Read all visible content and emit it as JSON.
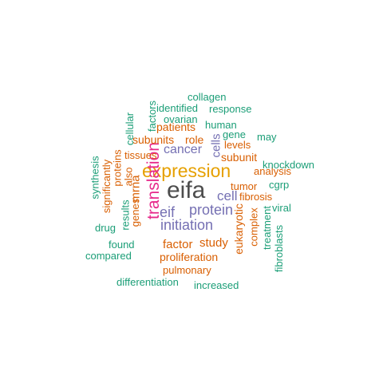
{
  "palette": {
    "gray": "#4d4d4d",
    "pink": "#e7298a",
    "gold": "#e6a000",
    "purple": "#7570b3",
    "orange": "#d95f02",
    "green": "#1b9e77"
  },
  "words": [
    {
      "text": "eifa",
      "color": "gray",
      "orientation": "horizontal"
    },
    {
      "text": "expression",
      "color": "gold",
      "orientation": "horizontal"
    },
    {
      "text": "translation",
      "color": "pink",
      "orientation": "vertical"
    },
    {
      "text": "protein",
      "color": "purple",
      "orientation": "horizontal"
    },
    {
      "text": "initiation",
      "color": "purple",
      "orientation": "horizontal"
    },
    {
      "text": "cell",
      "color": "purple",
      "orientation": "horizontal"
    },
    {
      "text": "eif",
      "color": "purple",
      "orientation": "horizontal"
    },
    {
      "text": "cancer",
      "color": "purple",
      "orientation": "horizontal"
    },
    {
      "text": "cells",
      "color": "purple",
      "orientation": "vertical"
    },
    {
      "text": "mrna",
      "color": "orange",
      "orientation": "vertical"
    },
    {
      "text": "factor",
      "color": "orange",
      "orientation": "horizontal"
    },
    {
      "text": "study",
      "color": "orange",
      "orientation": "horizontal"
    },
    {
      "text": "proliferation",
      "color": "orange",
      "orientation": "horizontal"
    },
    {
      "text": "eukaryotic",
      "color": "orange",
      "orientation": "vertical"
    },
    {
      "text": "patients",
      "color": "orange",
      "orientation": "horizontal"
    },
    {
      "text": "subunits",
      "color": "orange",
      "orientation": "horizontal"
    },
    {
      "text": "role",
      "color": "orange",
      "orientation": "horizontal"
    },
    {
      "text": "tissues",
      "color": "orange",
      "orientation": "horizontal"
    },
    {
      "text": "subunit",
      "color": "orange",
      "orientation": "horizontal"
    },
    {
      "text": "levels",
      "color": "orange",
      "orientation": "horizontal"
    },
    {
      "text": "tumor",
      "color": "orange",
      "orientation": "horizontal"
    },
    {
      "text": "fibrosis",
      "color": "orange",
      "orientation": "horizontal"
    },
    {
      "text": "analysis",
      "color": "orange",
      "orientation": "horizontal"
    },
    {
      "text": "complex",
      "color": "orange",
      "orientation": "vertical"
    },
    {
      "text": "pulmonary",
      "color": "orange",
      "orientation": "horizontal"
    },
    {
      "text": "genes",
      "color": "orange",
      "orientation": "vertical"
    },
    {
      "text": "also",
      "color": "orange",
      "orientation": "vertical"
    },
    {
      "text": "proteins",
      "color": "orange",
      "orientation": "vertical"
    },
    {
      "text": "significantly",
      "color": "orange",
      "orientation": "vertical"
    },
    {
      "text": "collagen",
      "color": "green",
      "orientation": "horizontal"
    },
    {
      "text": "identified",
      "color": "green",
      "orientation": "horizontal"
    },
    {
      "text": "response",
      "color": "green",
      "orientation": "horizontal"
    },
    {
      "text": "ovarian",
      "color": "green",
      "orientation": "horizontal"
    },
    {
      "text": "factors",
      "color": "green",
      "orientation": "vertical"
    },
    {
      "text": "cellular",
      "color": "green",
      "orientation": "vertical"
    },
    {
      "text": "human",
      "color": "green",
      "orientation": "horizontal"
    },
    {
      "text": "gene",
      "color": "green",
      "orientation": "horizontal"
    },
    {
      "text": "may",
      "color": "green",
      "orientation": "horizontal"
    },
    {
      "text": "knockdown",
      "color": "green",
      "orientation": "horizontal"
    },
    {
      "text": "cgrp",
      "color": "green",
      "orientation": "horizontal"
    },
    {
      "text": "viral",
      "color": "green",
      "orientation": "horizontal"
    },
    {
      "text": "synthesis",
      "color": "green",
      "orientation": "vertical"
    },
    {
      "text": "results",
      "color": "green",
      "orientation": "vertical"
    },
    {
      "text": "drug",
      "color": "green",
      "orientation": "horizontal"
    },
    {
      "text": "found",
      "color": "green",
      "orientation": "horizontal"
    },
    {
      "text": "compared",
      "color": "green",
      "orientation": "horizontal"
    },
    {
      "text": "treatment",
      "color": "green",
      "orientation": "vertical"
    },
    {
      "text": "fibroblasts",
      "color": "green",
      "orientation": "vertical"
    },
    {
      "text": "differentiation",
      "color": "green",
      "orientation": "horizontal"
    },
    {
      "text": "increased",
      "color": "green",
      "orientation": "horizontal"
    }
  ]
}
